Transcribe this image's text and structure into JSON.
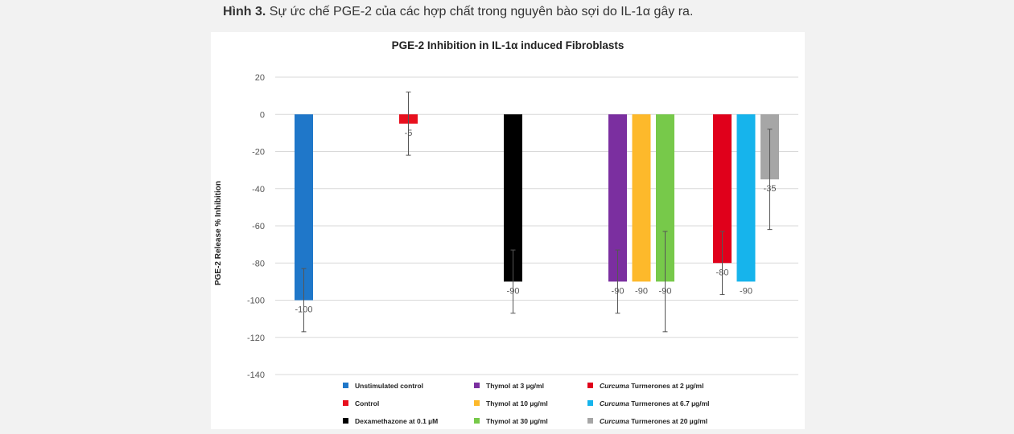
{
  "caption": {
    "prefix": "Hình 3.",
    "text": "Sự ức chế PGE-2 của các hợp chất trong nguyên bào sợi do IL-1α gây ra."
  },
  "chart_data": {
    "type": "bar",
    "title": "PGE-2 Inhibition in IL-1α induced Fibroblasts",
    "xlabel": "",
    "ylabel": "PGE-2 Release  % Inhibition",
    "ylim": [
      -140,
      20
    ],
    "yticks": [
      20,
      0,
      -20,
      -40,
      -60,
      -80,
      -100,
      -120,
      -140
    ],
    "grid": true,
    "legend_position": "bottom",
    "series": [
      {
        "name": "Unstimulated control",
        "value": -100,
        "label": "-100",
        "error": 17,
        "color": "#1f77c9",
        "group": 0
      },
      {
        "name": "Control",
        "value": -5,
        "label": "-5",
        "error": 17,
        "color": "#e8101e",
        "group": 1
      },
      {
        "name": "Dexamethazone at 0.1  µM",
        "value": -90,
        "label": "-90",
        "error": 17,
        "color": "#000000",
        "group": 2
      },
      {
        "name": "Thymol at 3 µg/ml",
        "value": -90,
        "label": "-90",
        "error": 17,
        "color": "#7b2fa0",
        "group": 3
      },
      {
        "name": "Thymol at 10 µg/ml",
        "value": -90,
        "label": "-90",
        "error": 0,
        "color": "#fdb92b",
        "group": 3
      },
      {
        "name": "Thymol at 30 µg/ml",
        "value": -90,
        "label": "-90",
        "error": 27,
        "color": "#77c94a",
        "group": 3
      },
      {
        "name": "Curcuma Turmerones at 2 µg/ml",
        "value": -80,
        "label": "-80",
        "error": 17,
        "color": "#e0001b",
        "group": 4
      },
      {
        "name": "Curcuma Turmerones at 6.7 µg/ml",
        "value": -90,
        "label": "-90",
        "error": 0,
        "color": "#16b4ec",
        "group": 4
      },
      {
        "name": "Curcuma Turmerones at 20 µg/ml",
        "value": -35,
        "label": "-35",
        "error": 27,
        "color": "#a6a6a6",
        "group": 4
      }
    ],
    "legend": [
      {
        "italic": "",
        "text": "Unstimulated control",
        "color": "#1f77c9"
      },
      {
        "italic": "",
        "text": "Control",
        "color": "#e8101e"
      },
      {
        "italic": "",
        "text": "Dexamethazone at 0.1  µM",
        "color": "#000000"
      },
      {
        "italic": "",
        "text": "Thymol at 3 µg/ml",
        "color": "#7b2fa0"
      },
      {
        "italic": "",
        "text": "Thymol at 10 µg/ml",
        "color": "#fdb92b"
      },
      {
        "italic": "",
        "text": "Thymol at 30 µg/ml",
        "color": "#77c94a"
      },
      {
        "italic": "Curcuma",
        "text": " Turmerones at 2 µg/ml",
        "color": "#e0001b"
      },
      {
        "italic": "Curcuma",
        "text": " Turmerones at 6.7 µg/ml",
        "color": "#16b4ec"
      },
      {
        "italic": "Curcuma",
        "text": " Turmerones at 20 µg/ml",
        "color": "#a6a6a6"
      }
    ]
  }
}
